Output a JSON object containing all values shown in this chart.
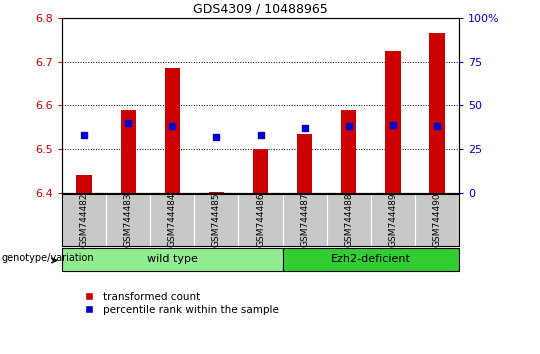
{
  "title": "GDS4309 / 10488965",
  "samples": [
    "GSM744482",
    "GSM744483",
    "GSM744484",
    "GSM744485",
    "GSM744486",
    "GSM744487",
    "GSM744488",
    "GSM744489",
    "GSM744490"
  ],
  "bar_values": [
    6.44,
    6.59,
    6.685,
    6.401,
    6.5,
    6.535,
    6.59,
    6.725,
    6.765
  ],
  "bar_base": 6.4,
  "percentile_values": [
    33,
    40,
    38,
    32,
    33,
    37,
    38,
    39,
    38
  ],
  "ylim": [
    6.4,
    6.8
  ],
  "y2lim": [
    0,
    100
  ],
  "yticks": [
    6.4,
    6.5,
    6.6,
    6.7,
    6.8
  ],
  "y2ticks": [
    0,
    25,
    50,
    75,
    100
  ],
  "bar_color": "#CC0000",
  "dot_color": "#0000CC",
  "bar_width": 0.35,
  "groups": [
    {
      "label": "wild type",
      "start": 0,
      "end": 4,
      "color": "#90EE90"
    },
    {
      "label": "Ezh2-deficient",
      "start": 5,
      "end": 8,
      "color": "#32CD32"
    }
  ],
  "group_label": "genotype/variation",
  "legend_bar_label": "transformed count",
  "legend_dot_label": "percentile rank within the sample",
  "left_tick_color": "#CC0000",
  "right_tick_color": "#0000CC",
  "background_color": "#ffffff",
  "tick_bg_color": "#c8c8c8"
}
